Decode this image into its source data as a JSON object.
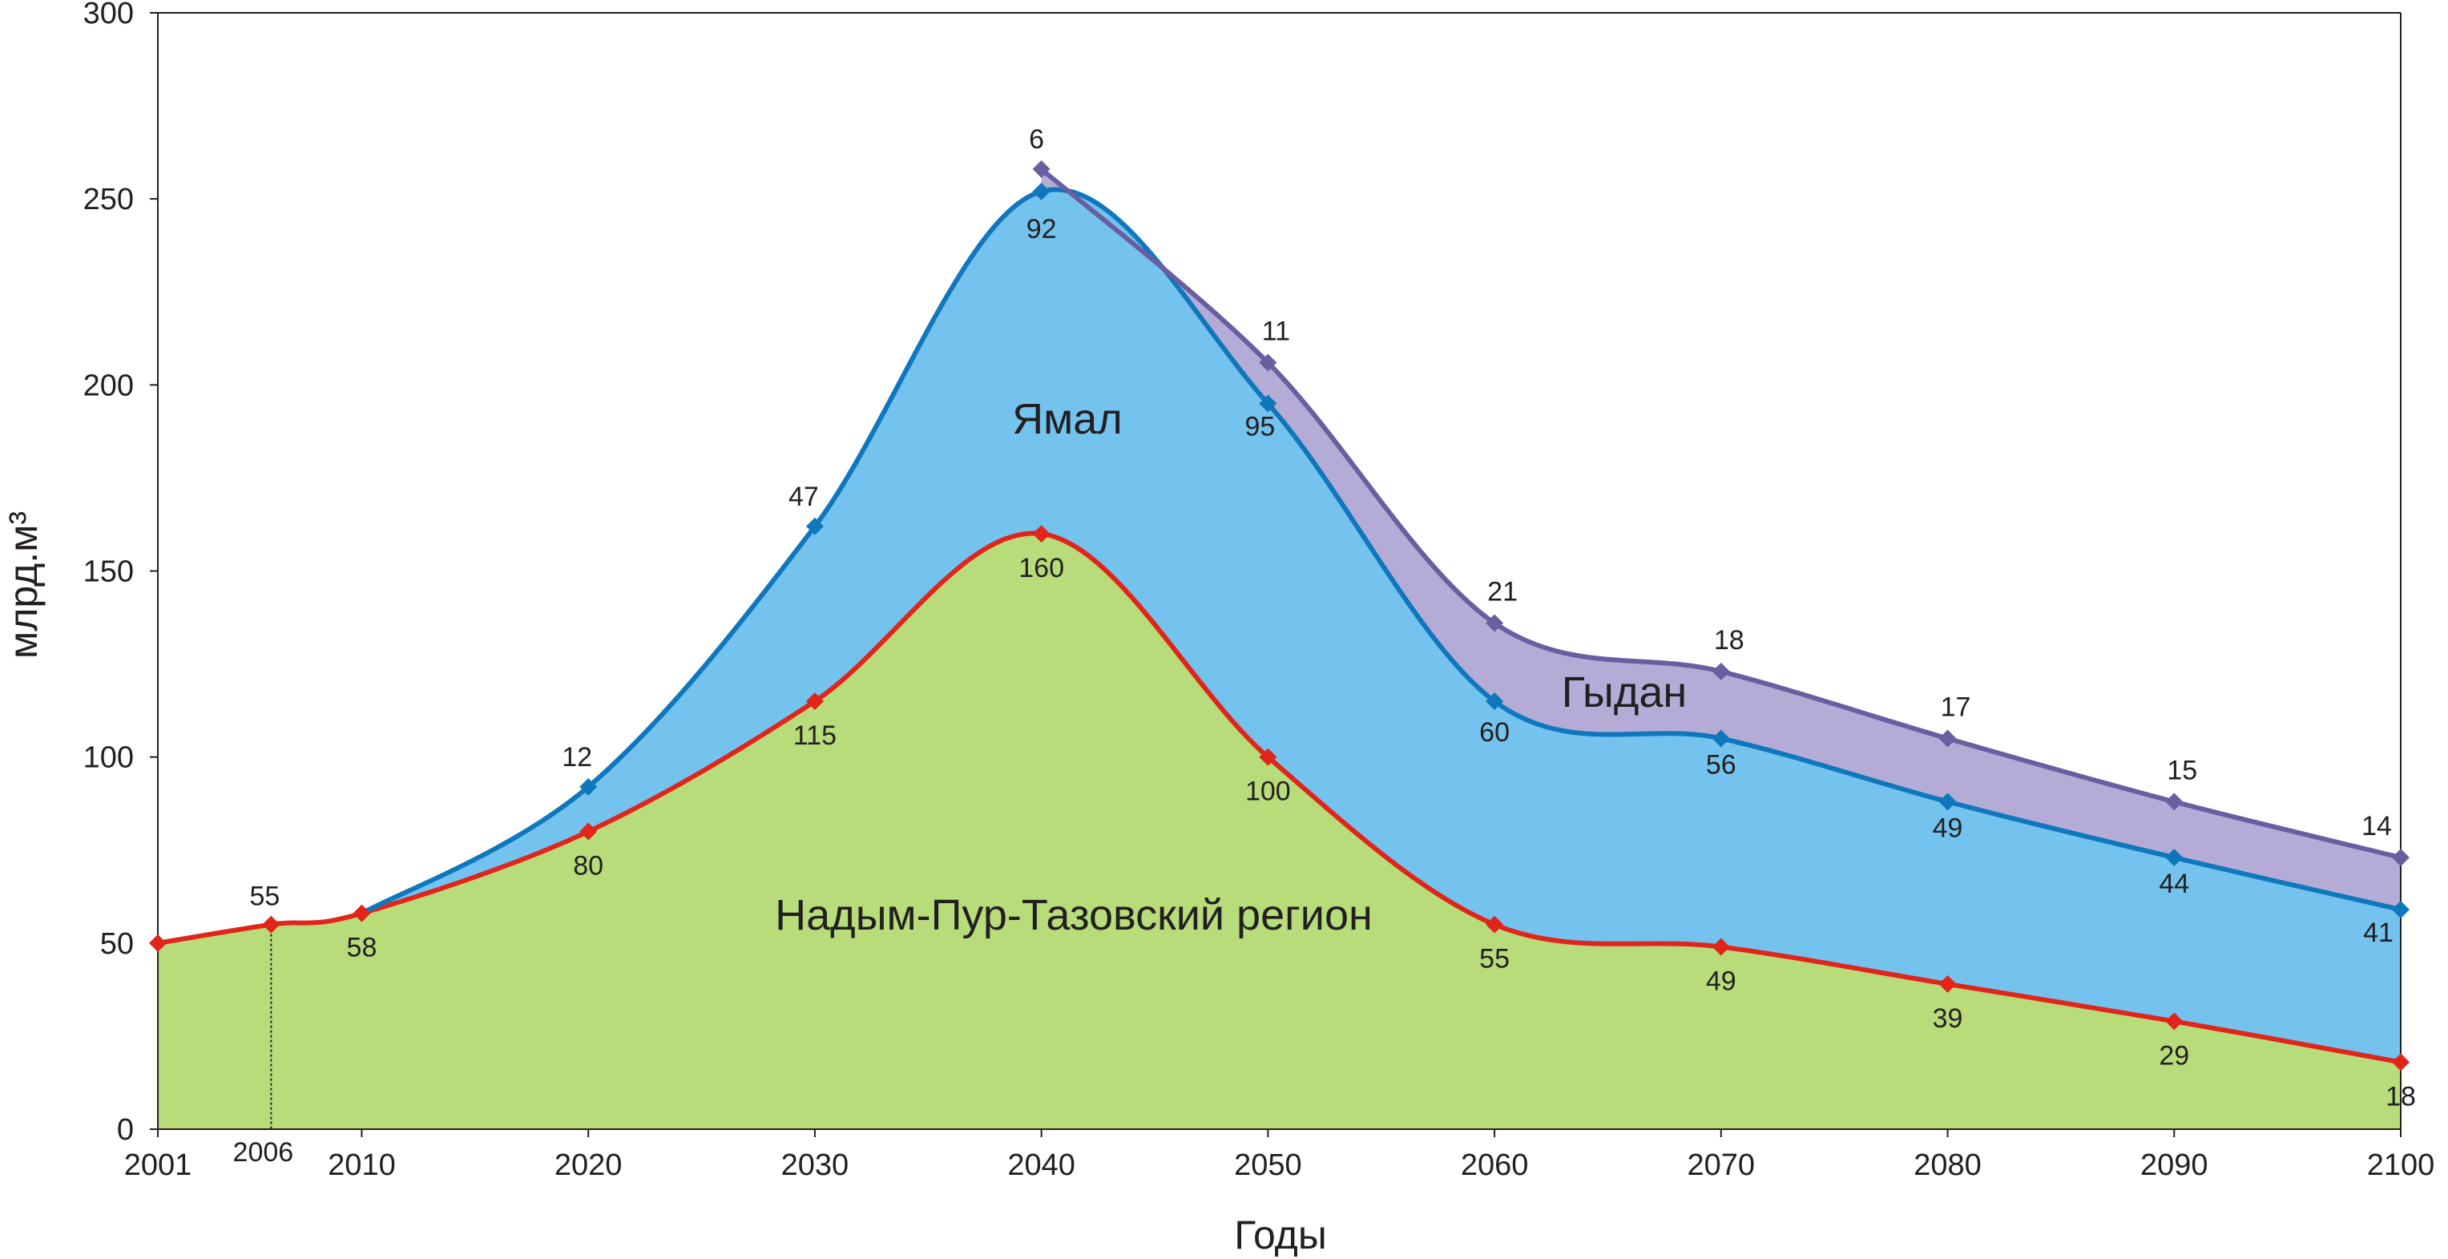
{
  "chart_data": {
    "type": "area",
    "stacked": true,
    "x_ticks": [
      2001,
      2010,
      2020,
      2030,
      2040,
      2050,
      2060,
      2070,
      2080,
      2090,
      2100
    ],
    "x_marker": 2006,
    "xlim": [
      2001,
      2100
    ],
    "ylim": [
      0,
      300
    ],
    "y_ticks": [
      0,
      50,
      100,
      150,
      200,
      250,
      300
    ],
    "xlabel": "Годы",
    "ylabel": "млрд.м³",
    "grid": false,
    "series": [
      {
        "name": "Надым-Пур-Тазовский регион",
        "color": "#e1251b",
        "fill": "#b8dc7a",
        "x": [
          2001,
          2006,
          2010,
          2020,
          2030,
          2040,
          2050,
          2060,
          2070,
          2080,
          2090,
          2100
        ],
        "values": [
          50,
          55,
          58,
          80,
          115,
          160,
          100,
          55,
          49,
          39,
          29,
          18
        ],
        "labels": [
          "",
          "55",
          "58",
          "80",
          "115",
          "160",
          "100",
          "55",
          "49",
          "39",
          "29",
          "18"
        ]
      },
      {
        "name": "Ямал",
        "color": "#0f77bc",
        "fill": "#73c3ee",
        "x": [
          2010,
          2020,
          2030,
          2040,
          2050,
          2060,
          2070,
          2080,
          2090,
          2100
        ],
        "values": [
          0,
          12,
          47,
          92,
          95,
          60,
          56,
          49,
          44,
          41
        ],
        "labels": [
          "",
          "12",
          "47",
          "92",
          "95",
          "60",
          "56",
          "49",
          "44",
          "41"
        ]
      },
      {
        "name": "Гыдан",
        "color": "#6a5da0",
        "fill": "#b4acd6",
        "x": [
          2040,
          2050,
          2060,
          2070,
          2080,
          2090,
          2100
        ],
        "values": [
          6,
          11,
          21,
          18,
          17,
          15,
          14
        ],
        "labels": [
          "6",
          "11",
          "21",
          "18",
          "17",
          "15",
          "14"
        ]
      }
    ]
  }
}
